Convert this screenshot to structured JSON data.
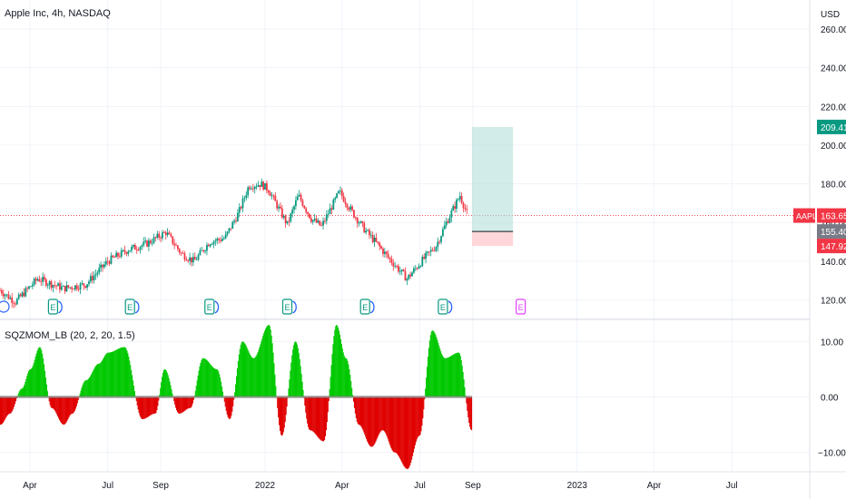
{
  "header": {
    "title": "Apple Inc, 4h, NASDAQ",
    "currency": "USD",
    "indicator_label": "SQZMOM_LB (20, 2, 20, 1.5)"
  },
  "chart_data": [
    {
      "type": "candlestick",
      "title": "Apple Inc, 4h, NASDAQ",
      "ylabel": "USD",
      "ylim": [
        110,
        275
      ],
      "yticks": [
        120,
        140,
        160,
        180,
        200,
        220,
        240,
        260
      ],
      "grid": true,
      "series": [
        {
          "name": "AAPL",
          "x": [
            "2021-02-25",
            "2021-03-15",
            "2021-04-10",
            "2021-05-10",
            "2021-06-05",
            "2021-07-01",
            "2021-07-25",
            "2021-08-15",
            "2021-09-07",
            "2021-09-25",
            "2021-10-10",
            "2021-10-28",
            "2021-11-15",
            "2021-12-01",
            "2021-12-13",
            "2021-12-27",
            "2022-01-05",
            "2022-01-27",
            "2022-02-09",
            "2022-02-24",
            "2022-03-08",
            "2022-03-29",
            "2022-04-12",
            "2022-04-28",
            "2022-05-12",
            "2022-05-25",
            "2022-06-16",
            "2022-07-05",
            "2022-07-20",
            "2022-08-01",
            "2022-08-17",
            "2022-08-26"
          ],
          "y": [
            125,
            119,
            131,
            126,
            128,
            140,
            146,
            149,
            155,
            144,
            140,
            150,
            152,
            165,
            179,
            180,
            177,
            159,
            174,
            162,
            158,
            176,
            166,
            156,
            149,
            142,
            131,
            141,
            148,
            160,
            174,
            163.65
          ]
        }
      ],
      "current_price": {
        "label": "AAPL",
        "value": 163.65
      },
      "position_tool": {
        "target": 209.41,
        "entry": 155.4,
        "stop": 147.92,
        "start": "2022-08-31",
        "end": "2022-10-18"
      },
      "earnings_markers": [
        {
          "date": "2021-01-27",
          "label": "E"
        },
        {
          "date": "2021-04-28",
          "label": "E"
        },
        {
          "date": "2021-07-27",
          "label": "E"
        },
        {
          "date": "2021-10-28",
          "label": "E"
        },
        {
          "date": "2022-01-27",
          "label": "E"
        },
        {
          "date": "2022-04-28",
          "label": "E"
        },
        {
          "date": "2022-07-28",
          "label": "E"
        },
        {
          "date": "2022-10-27",
          "label": "E"
        }
      ],
      "xticks": [
        {
          "date": "2021-04-01",
          "label": "Apr"
        },
        {
          "date": "2021-07-01",
          "label": "Jul"
        },
        {
          "date": "2021-09-01",
          "label": "Sep"
        },
        {
          "date": "2022-01-01",
          "label": "2022"
        },
        {
          "date": "2022-04-01",
          "label": "Apr"
        },
        {
          "date": "2022-07-01",
          "label": "Jul"
        },
        {
          "date": "2022-09-01",
          "label": "Sep"
        },
        {
          "date": "2023-01-01",
          "label": "2023"
        },
        {
          "date": "2023-04-01",
          "label": "Apr"
        },
        {
          "date": "2023-07-01",
          "label": "Jul"
        }
      ]
    },
    {
      "type": "histogram",
      "title": "SQZMOM_LB (20, 2, 20, 1.5)",
      "ylim": [
        -13.5,
        14
      ],
      "yticks": [
        10,
        0,
        -10
      ],
      "series": [
        {
          "name": "SQZMOM_LB",
          "x": [
            "2021-02-25",
            "2021-03-08",
            "2021-03-22",
            "2021-04-01",
            "2021-04-12",
            "2021-04-26",
            "2021-05-10",
            "2021-05-20",
            "2021-06-05",
            "2021-06-20",
            "2021-07-01",
            "2021-07-20",
            "2021-08-10",
            "2021-08-25",
            "2021-09-05",
            "2021-09-22",
            "2021-10-05",
            "2021-10-20",
            "2021-11-05",
            "2021-11-20",
            "2021-12-05",
            "2021-12-18",
            "2022-01-05",
            "2022-01-20",
            "2022-02-05",
            "2022-02-22",
            "2022-03-10",
            "2022-03-25",
            "2022-04-05",
            "2022-04-20",
            "2022-05-05",
            "2022-05-18",
            "2022-06-01",
            "2022-06-16",
            "2022-06-30",
            "2022-07-15",
            "2022-07-30",
            "2022-08-15",
            "2022-08-30"
          ],
          "y": [
            -5,
            -3,
            1.5,
            5,
            9,
            -2,
            -5,
            -3,
            3,
            6,
            8,
            9,
            -4,
            -3,
            5,
            -3,
            -2,
            7,
            5,
            -4,
            10,
            7,
            13,
            -7,
            10,
            -6,
            -8,
            13,
            7,
            -5,
            -9,
            -6,
            -10,
            -13,
            -7,
            12,
            7,
            8,
            -6
          ]
        }
      ]
    }
  ]
}
